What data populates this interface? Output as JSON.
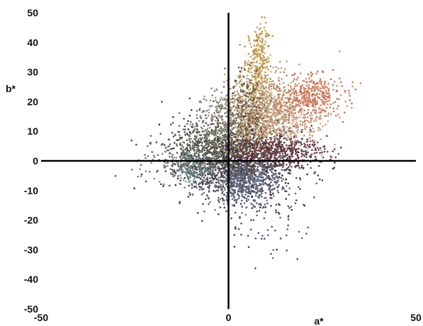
{
  "chart_data": {
    "type": "scatter",
    "title": "",
    "xlabel": "a*",
    "ylabel": "b*",
    "xlim": [
      -50,
      50
    ],
    "ylim": [
      -50,
      50
    ],
    "x_ticks": [
      "-50",
      "0",
      "50"
    ],
    "y_ticks": [
      "50",
      "40",
      "30",
      "20",
      "10",
      "0",
      "-10",
      "-20",
      "-30",
      "-40",
      "-50"
    ],
    "grid": false,
    "legend": "none",
    "reference_lines": [
      {
        "axis": "x",
        "value": 0
      },
      {
        "axis": "y",
        "value": 0
      }
    ],
    "point_clusters": [
      {
        "description": "central dark core",
        "center": [
          2,
          0
        ],
        "spread": [
          8,
          6
        ],
        "count": 1500,
        "color": "#4a4148"
      },
      {
        "description": "bluish low cluster",
        "center": [
          4,
          -7
        ],
        "spread": [
          5,
          4
        ],
        "count": 500,
        "color": "#5f6980"
      },
      {
        "description": "olive left wing",
        "center": [
          -6,
          4
        ],
        "spread": [
          5,
          5
        ],
        "count": 450,
        "color": "#5e6150"
      },
      {
        "description": "teal edge",
        "center": [
          -10,
          -2
        ],
        "spread": [
          3,
          3
        ],
        "count": 180,
        "color": "#6f8a88"
      },
      {
        "description": "tan arm",
        "center": [
          8,
          18
        ],
        "spread": [
          4,
          7
        ],
        "count": 600,
        "color": "#b79a6e"
      },
      {
        "description": "golden top arm",
        "center": [
          8,
          34
        ],
        "spread": [
          1.5,
          6
        ],
        "count": 250,
        "color": "#c8a055"
      },
      {
        "description": "dark brown stem",
        "center": [
          5,
          14
        ],
        "spread": [
          3,
          7
        ],
        "count": 350,
        "color": "#6b5a3e"
      },
      {
        "description": "peach mid arm",
        "center": [
          14,
          14
        ],
        "spread": [
          6,
          5
        ],
        "count": 500,
        "color": "#c99b7f"
      },
      {
        "description": "orange right arm",
        "center": [
          22,
          22
        ],
        "spread": [
          4,
          3.5
        ],
        "count": 400,
        "color": "#d07e60"
      },
      {
        "description": "maroon band",
        "center": [
          14,
          3
        ],
        "spread": [
          6,
          2.5
        ],
        "count": 350,
        "color": "#6a3b45"
      },
      {
        "description": "grey upper",
        "center": [
          -2,
          15
        ],
        "spread": [
          3,
          4
        ],
        "count": 200,
        "color": "#8a8a7a"
      },
      {
        "description": "sparse tail",
        "center": [
          12,
          -20
        ],
        "spread": [
          5,
          8
        ],
        "count": 80,
        "color": "#4f5370"
      },
      {
        "description": "far left outliers",
        "center": [
          -20,
          0
        ],
        "spread": [
          4,
          3
        ],
        "count": 40,
        "color": "#7a7a70"
      }
    ]
  }
}
